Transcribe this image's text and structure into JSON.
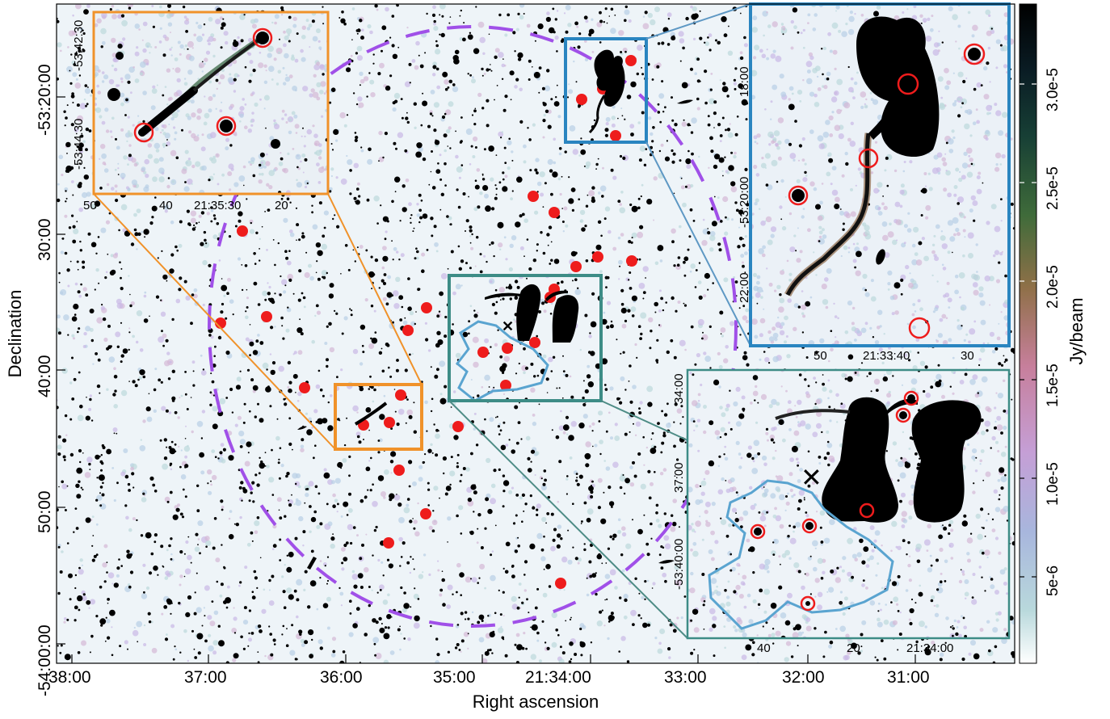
{
  "axes": {
    "xlabel": "Right ascension",
    "ylabel": "Declination",
    "x_ticks": [
      "38:00",
      "37:00",
      "36:00",
      "35:00",
      "21:34:00",
      "33:00",
      "32:00",
      "31:00"
    ],
    "y_ticks": [
      "-53:20:00",
      "30:00",
      "40:00",
      "50:00",
      "-54:00:00"
    ]
  },
  "colorbar": {
    "label": "Jy/beam",
    "ticks": [
      "3.0e-5",
      "2.5e-5",
      "2.0e-5",
      "1.5e-5",
      "1.0e-5",
      "5e-6"
    ],
    "colors": [
      "#ffffff",
      "#b9d9dc",
      "#a8b6dd",
      "#c59fd6",
      "#c77f9c",
      "#8f7048",
      "#3f6b3a",
      "#173f35",
      "#0a1c24",
      "#000000"
    ]
  },
  "inset_orange": {
    "frame_color": "#f0922a",
    "x_ticks": [
      "50",
      "40",
      "21:35:30",
      "20"
    ],
    "y_ticks": [
      "-53:42:30",
      "-53:44:30"
    ]
  },
  "inset_blue": {
    "frame_color": "#2a85c0",
    "x_ticks": [
      "50",
      "21:33:40",
      "30"
    ],
    "y_ticks": [
      "18:00",
      "-53:20:00",
      "22:00"
    ]
  },
  "inset_teal": {
    "frame_color": "#3d8c86",
    "x_ticks": [
      "40",
      "20",
      "21:34:00"
    ],
    "y_ticks": [
      "34:00",
      "37:00",
      "-53:40:00"
    ]
  },
  "colors": {
    "dashed_circle": "#a050e8",
    "markers": "#ee1c1c",
    "region_outline": "#5aa4d0"
  }
}
